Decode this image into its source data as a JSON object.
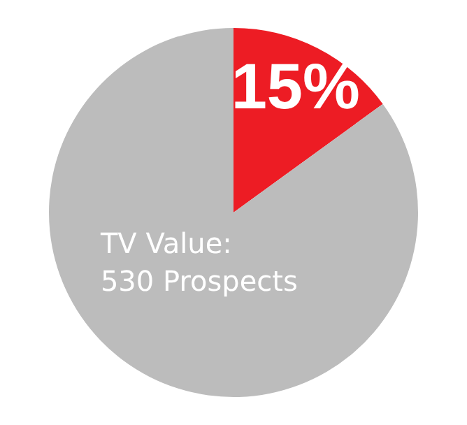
{
  "chart_data": {
    "type": "pie",
    "categories": [
      null,
      null
    ],
    "values": [
      15,
      85
    ],
    "colors": [
      "#ed1c24",
      "#bcbcbc"
    ],
    "value_labels": [
      "15%",
      null
    ],
    "annotations": [
      "TV Value:\n530 Prospects"
    ],
    "legend": false
  }
}
